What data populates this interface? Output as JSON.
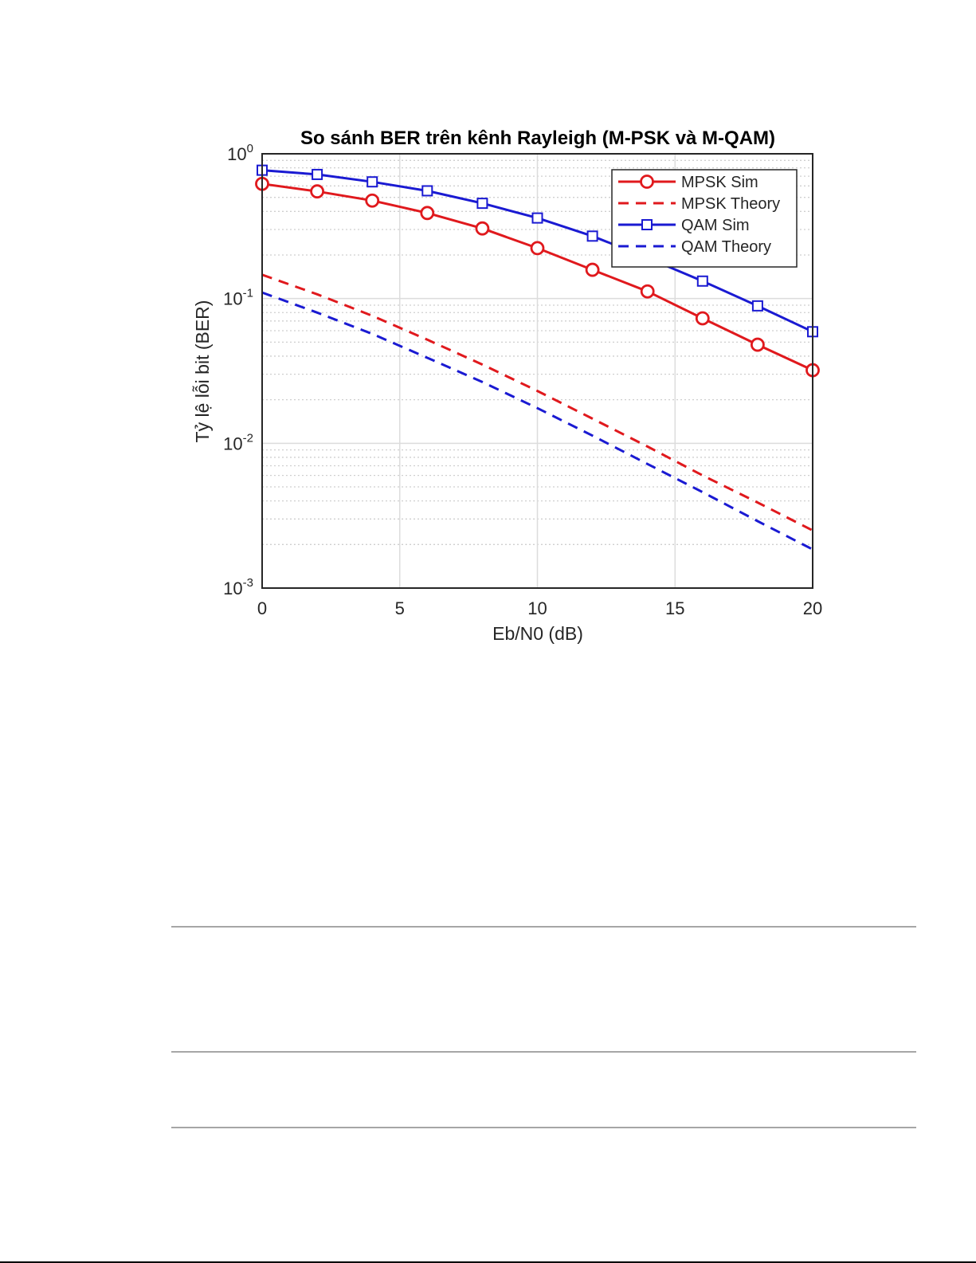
{
  "chart_data": {
    "type": "line",
    "title": "So sánh BER trên kênh Rayleigh (M-PSK và M-QAM)",
    "xlabel": "Eb/N0 (dB)",
    "ylabel": "Tỷ lệ lỗi bit (BER)",
    "xlim": [
      0,
      20
    ],
    "ylim": [
      0.001,
      1
    ],
    "yscale": "log",
    "grid": true,
    "minor_grid": true,
    "legend_position": "top-right",
    "x_ticks": [
      0,
      5,
      10,
      15,
      20
    ],
    "y_ticks": [
      {
        "base": "10",
        "exp": "0",
        "value": 1
      },
      {
        "base": "10",
        "exp": "-1",
        "value": 0.1
      },
      {
        "base": "10",
        "exp": "-2",
        "value": 0.01
      },
      {
        "base": "10",
        "exp": "-3",
        "value": 0.001
      }
    ],
    "series": [
      {
        "name": "MPSK Sim",
        "color": "#e0191d",
        "style": "solid",
        "marker": "circle",
        "x": [
          0,
          2,
          4,
          6,
          8,
          10,
          12,
          14,
          16,
          18,
          20
        ],
        "y": [
          0.62,
          0.55,
          0.475,
          0.39,
          0.305,
          0.223,
          0.158,
          0.112,
          0.073,
          0.048,
          0.032
        ]
      },
      {
        "name": "MPSK Theory",
        "color": "#e0191d",
        "style": "dashed",
        "marker": "none",
        "x": [
          0,
          2,
          4,
          6,
          8,
          10,
          12,
          14,
          16,
          18,
          20
        ],
        "y": [
          0.146,
          0.107,
          0.076,
          0.052,
          0.035,
          0.023,
          0.0148,
          0.0095,
          0.006,
          0.0039,
          0.0025
        ]
      },
      {
        "name": "QAM Sim",
        "color": "#1a1ad2",
        "style": "solid",
        "marker": "square",
        "x": [
          0,
          2,
          4,
          6,
          8,
          10,
          12,
          14,
          16,
          18,
          20
        ],
        "y": [
          0.77,
          0.72,
          0.64,
          0.555,
          0.455,
          0.36,
          0.27,
          0.191,
          0.132,
          0.089,
          0.059
        ]
      },
      {
        "name": "QAM Theory",
        "color": "#1a1ad2",
        "style": "dashed",
        "marker": "none",
        "x": [
          0,
          2,
          4,
          6,
          8,
          10,
          12,
          14,
          16,
          18,
          20
        ],
        "y": [
          0.11,
          0.08,
          0.057,
          0.039,
          0.0265,
          0.0175,
          0.0113,
          0.0072,
          0.0046,
          0.0029,
          0.00185
        ]
      }
    ]
  }
}
